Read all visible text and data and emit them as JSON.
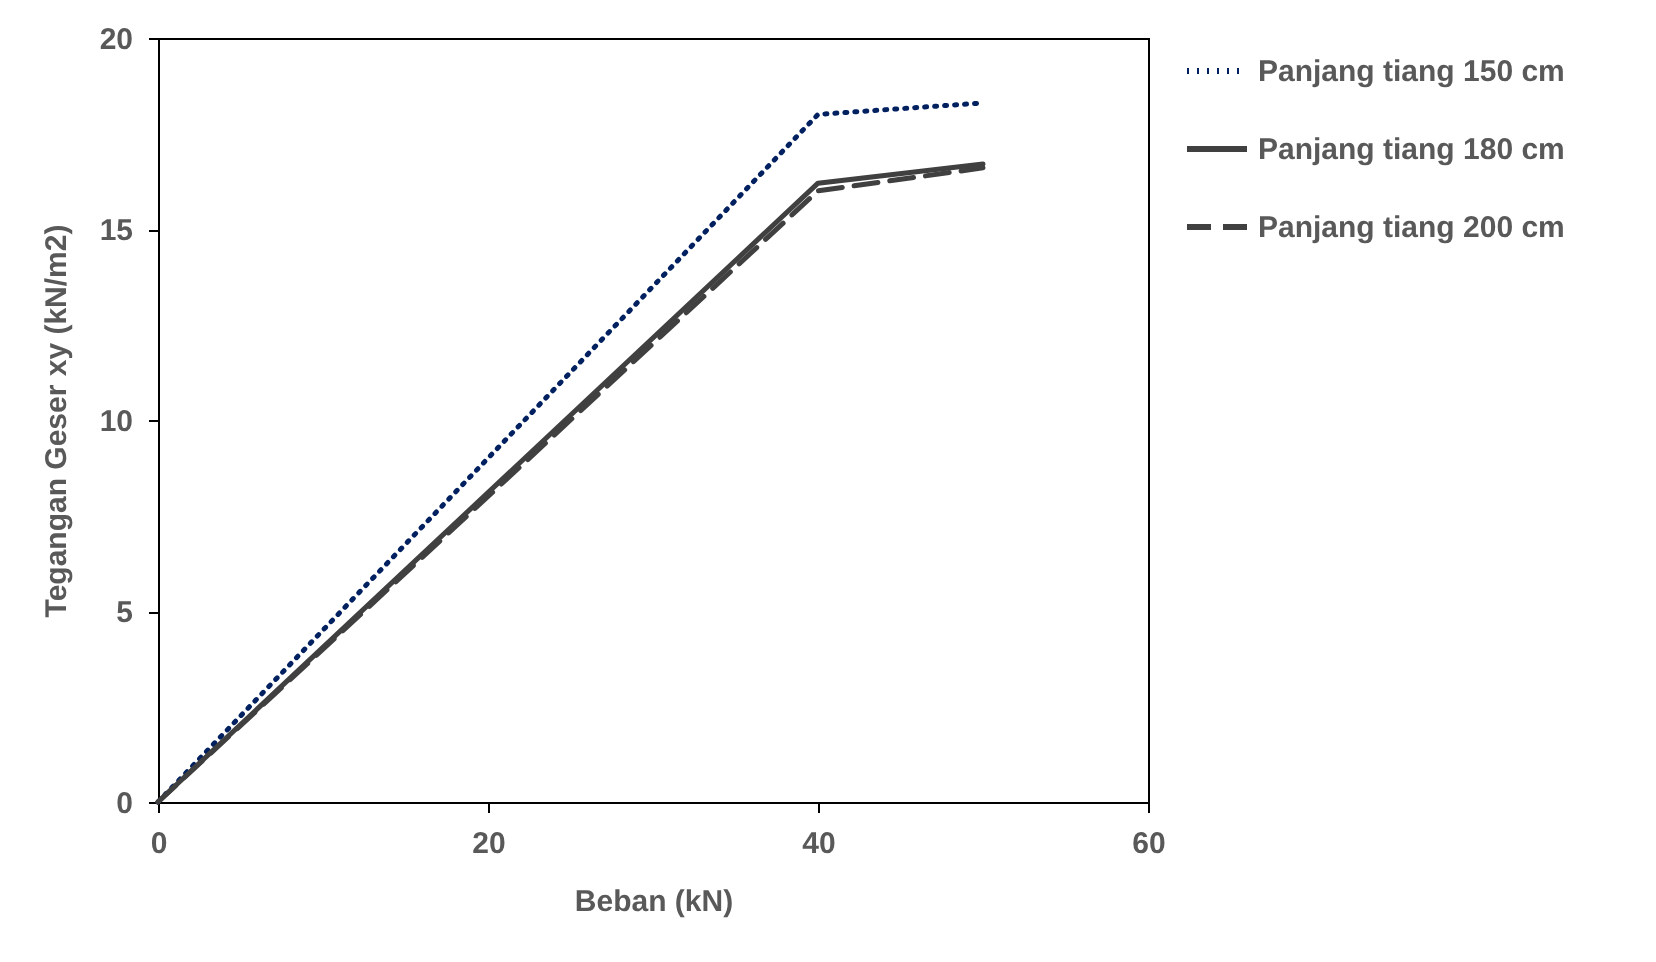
{
  "chart_data": {
    "type": "line",
    "xlabel": "Beban (kN)",
    "ylabel": "Tegangan Geser xy (kN/m2)",
    "x": [
      0,
      40,
      50
    ],
    "xlim": [
      0,
      60
    ],
    "xticks": [
      0,
      20,
      40,
      60
    ],
    "ylim": [
      0,
      20
    ],
    "yticks": [
      0,
      5,
      10,
      15,
      20
    ],
    "grid": false,
    "legend": "right",
    "marker": "none",
    "series": [
      {
        "name": "Panjang tiang 150 cm",
        "color": "#002060",
        "line_style": "dotted",
        "values": [
          0,
          18.0,
          18.3
        ]
      },
      {
        "name": "Panjang tiang 180 cm",
        "color": "#404040",
        "line_style": "solid",
        "values": [
          0,
          16.2,
          16.7
        ]
      },
      {
        "name": "Panjang tiang 200 cm",
        "color": "#404040",
        "line_style": "dashed",
        "values": [
          0,
          16.0,
          16.6
        ]
      }
    ]
  }
}
